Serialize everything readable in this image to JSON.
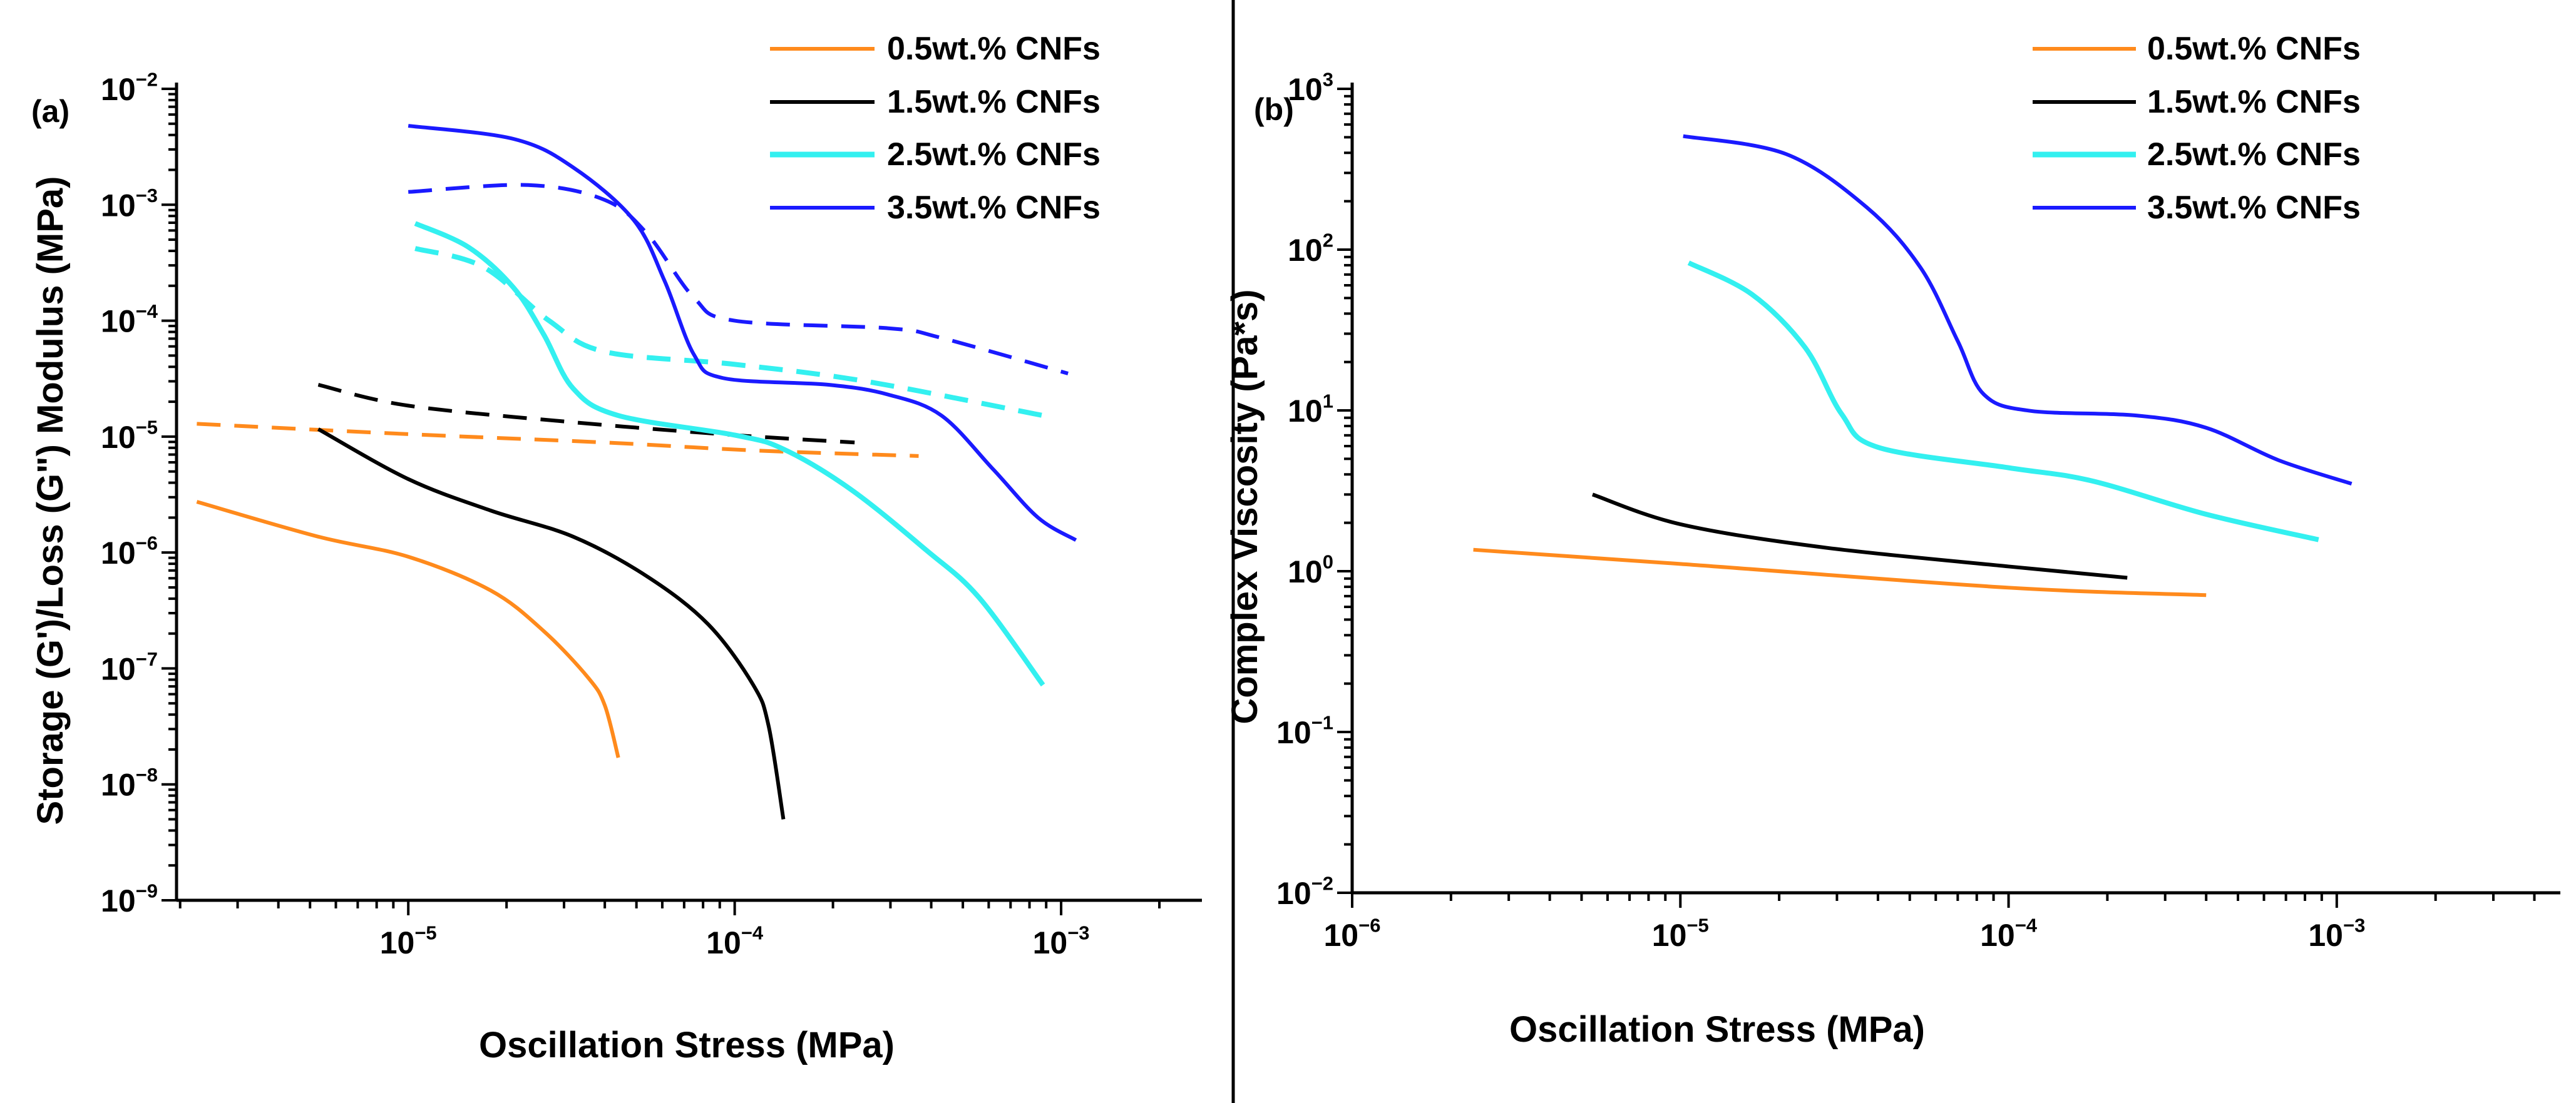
{
  "chart_data": [
    {
      "panel_label": "(a)",
      "type": "line",
      "xscale": "log",
      "yscale": "log",
      "xlabel": "Oscillation Stress (MPa)",
      "ylabel": "Storage (G')/Loss (G\") Modulus (MPa)",
      "xlim": [
        1.95e-06,
        0.0027
      ],
      "ylim": [
        1e-09,
        0.01
      ],
      "x_tick_exponents": [
        -5,
        -4,
        -3
      ],
      "y_tick_exponents": [
        -9,
        -8,
        -7,
        -6,
        -5,
        -4,
        -3,
        -2
      ],
      "grid": false,
      "legend_position": "top-right",
      "legend": [
        "0.5wt.% CNFs",
        "1.5wt.% CNFs",
        "2.5wt.% CNFs",
        "3.5wt.% CNFs"
      ],
      "series": [
        {
          "name": "0.5wt.% CNFs",
          "measure": "G'",
          "style": "solid",
          "color": "#ff8a1c",
          "x": [
            2.25e-06,
            5.3e-06,
            1e-05,
            1.79e-05,
            2.6e-05,
            3.56e-05,
            4e-05,
            4.4e-05
          ],
          "y": [
            2.74e-06,
            1.37e-06,
            9.2e-07,
            4.7e-07,
            2.1e-07,
            8.3e-08,
            4.8e-08,
            1.7e-08
          ]
        },
        {
          "name": "0.5wt.% CNFs",
          "measure": "G\"",
          "style": "dashed",
          "color": "#ff8a1c",
          "x": [
            2.25e-06,
            1e-05,
            4e-05,
            0.000114,
            0.000366
          ],
          "y": [
            1.29e-05,
            1.05e-05,
            8.9e-06,
            7.6e-06,
            6.8e-06
          ]
        },
        {
          "name": "1.5wt.% CNFs",
          "measure": "G'",
          "style": "solid",
          "color": "#000000",
          "x": [
            5.3e-06,
            1e-05,
            1.79e-05,
            3.2e-05,
            5.4e-05,
            8.3e-05,
            0.000114,
            0.000127,
            0.000141
          ],
          "y": [
            1.16e-05,
            4.3e-06,
            2.3e-06,
            1.37e-06,
            6.2e-07,
            2.4e-07,
            7.2e-08,
            3.2e-08,
            5e-09
          ]
        },
        {
          "name": "1.5wt.% CNFs",
          "measure": "G\"",
          "style": "dashed",
          "color": "#000000",
          "x": [
            5.3e-06,
            1e-05,
            3.2e-05,
            0.0001,
            0.000233
          ],
          "y": [
            2.8e-05,
            1.85e-05,
            1.33e-05,
            1.03e-05,
            8.9e-06
          ]
        },
        {
          "name": "2.5wt.% CNFs",
          "measure": "G'",
          "style": "solid",
          "color": "#33f0f0",
          "x": [
            1.05e-05,
            1.53e-05,
            2.1e-05,
            2.6e-05,
            3.2e-05,
            4.4e-05,
            0.0001,
            0.000141,
            0.000227,
            0.000386,
            0.00056,
            0.00088
          ],
          "y": [
            0.00069,
            0.00043,
            0.000193,
            7.6e-05,
            2.6e-05,
            1.52e-05,
            1.03e-05,
            7.8e-06,
            3.5e-06,
            1.05e-06,
            4.1e-07,
            7.2e-08
          ]
        },
        {
          "name": "2.5wt.% CNFs",
          "measure": "G\"",
          "style": "dashed",
          "color": "#33f0f0",
          "x": [
            1.05e-05,
            1.7e-05,
            2.7e-05,
            4e-05,
            0.0001,
            0.000252,
            0.00088
          ],
          "y": [
            0.00042,
            0.00029,
            0.0001,
            5.4e-05,
            4.2e-05,
            3e-05,
            1.52e-05
          ]
        },
        {
          "name": "3.5wt.% CNFs",
          "measure": "G'",
          "style": "solid",
          "color": "#1a1aff",
          "x": [
            1e-05,
            2.1e-05,
            3.2e-05,
            4.9e-05,
            6.1e-05,
            7.5e-05,
            9.2e-05,
            0.000194,
            0.000296,
            0.00043,
            0.00062,
            0.00085,
            0.00111
          ],
          "y": [
            0.0048,
            0.0037,
            0.0021,
            0.00074,
            0.00022,
            5.1e-05,
            3.2e-05,
            2.8e-05,
            2.3e-05,
            1.52e-05,
            5.2e-06,
            2e-06,
            1.28e-06
          ]
        },
        {
          "name": "3.5wt.% CNFs",
          "measure": "G\"",
          "style": "dashed",
          "color": "#1a1aff",
          "x": [
            1e-05,
            2.33e-05,
            4e-05,
            5.4e-05,
            7.5e-05,
            0.0001,
            0.000296,
            0.00043,
            0.00105
          ],
          "y": [
            0.00129,
            0.00148,
            0.0011,
            0.00056,
            0.000158,
            0.0001,
            8.6e-05,
            7.1e-05,
            3.5e-05
          ]
        }
      ]
    },
    {
      "panel_label": "(b)",
      "type": "line",
      "xscale": "log",
      "yscale": "log",
      "xlabel": "Oscillation Stress (MPa)",
      "ylabel": "Complex Viscosity (Pa*s)",
      "xlim": [
        1e-06,
        0.0048
      ],
      "ylim": [
        0.01,
        1000.0
      ],
      "x_tick_exponents": [
        -6,
        -5,
        -4,
        -3
      ],
      "y_tick_exponents": [
        -2,
        -1,
        0,
        1,
        2,
        3
      ],
      "grid": false,
      "legend_position": "top-right",
      "legend": [
        "0.5wt.% CNFs",
        "1.5wt.% CNFs",
        "2.5wt.% CNFs",
        "3.5wt.% CNFs"
      ],
      "series": [
        {
          "name": "0.5wt.% CNFs",
          "style": "solid",
          "color": "#ff8a1c",
          "x": [
            2.34e-06,
            1e-05,
            0.0001,
            0.0004
          ],
          "y": [
            1.36,
            1.11,
            0.79,
            0.71
          ]
        },
        {
          "name": "1.5wt.% CNFs",
          "style": "solid",
          "color": "#000000",
          "x": [
            5.4e-06,
            1e-05,
            2.7e-05,
            0.0001,
            0.00023
          ],
          "y": [
            3.0,
            1.96,
            1.41,
            1.07,
            0.91
          ]
        },
        {
          "name": "2.5wt.% CNFs",
          "style": "solid",
          "color": "#33f0f0",
          "x": [
            1.06e-05,
            1.65e-05,
            2.4e-05,
            3.1e-05,
            4e-05,
            0.0001,
            0.000179,
            0.0004,
            0.00088
          ],
          "y": [
            82.8,
            52.8,
            24.6,
            9.5,
            5.9,
            4.4,
            3.65,
            2.26,
            1.57
          ]
        },
        {
          "name": "3.5wt.% CNFs",
          "style": "solid",
          "color": "#1a1aff",
          "x": [
            1.02e-05,
            2.1e-05,
            3.7e-05,
            5.4e-05,
            7e-05,
            8.4e-05,
            0.000116,
            0.000245,
            0.0004,
            0.000665,
            0.00111
          ],
          "y": [
            508,
            393,
            183,
            77,
            27,
            12.6,
            9.95,
            9.3,
            7.8,
            4.9,
            3.5
          ]
        }
      ]
    }
  ]
}
